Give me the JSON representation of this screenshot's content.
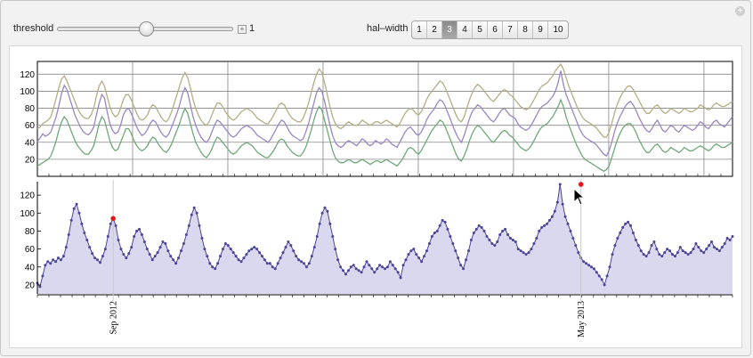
{
  "controls": {
    "threshold_label": "threshold",
    "threshold_value": "1",
    "threshold_level": 0.5,
    "halfwidth_label": "hal–width",
    "halfwidth_options": [
      "1",
      "2",
      "3",
      "4",
      "5",
      "6",
      "7",
      "8",
      "9",
      "10"
    ],
    "halfwidth_selected": "3"
  },
  "icons": {
    "window_button": "plus-icon",
    "cursor": "arrow-cursor-icon",
    "slider_increment": "plus-icon"
  },
  "colors": {
    "envelope_upper": "#b5ad85",
    "envelope_lower": "#6fa87a",
    "smoothed": "#9a86c4",
    "raw": "#4a4596",
    "fill": "#d9d8ee",
    "peak_marker": "#e01818"
  },
  "chart_data": [
    {
      "type": "line",
      "ylim": [
        0,
        135
      ],
      "yticks": [
        20,
        40,
        60,
        80,
        100,
        120
      ],
      "grid": true,
      "series": [
        {
          "values": [
            41,
            45,
            50,
            47,
            49,
            52,
            61,
            70,
            83,
            97,
            107,
            102,
            92,
            82,
            72,
            65,
            58,
            53,
            50,
            49,
            52,
            58,
            72,
            86,
            96,
            92,
            76,
            62,
            54,
            50,
            52,
            60,
            72,
            78,
            80,
            74,
            66,
            58,
            52,
            48,
            50,
            55,
            62,
            66,
            64,
            58,
            52,
            48,
            46,
            50,
            58,
            66,
            74,
            84,
            96,
            104,
            98,
            84,
            70,
            60,
            52,
            46,
            42,
            40,
            44,
            52,
            60,
            66,
            64,
            60,
            56,
            52,
            48,
            46,
            48,
            52,
            56,
            58,
            60,
            58,
            56,
            52,
            48,
            46,
            44,
            42,
            40,
            44,
            50,
            56,
            62,
            66,
            64,
            58,
            52,
            48,
            46,
            44,
            42,
            44,
            52,
            62,
            74,
            86,
            98,
            104,
            100,
            88,
            74,
            60,
            48,
            40,
            36,
            34,
            36,
            40,
            42,
            40,
            38,
            36,
            40,
            44,
            42,
            38,
            36,
            38,
            42,
            40,
            38,
            40,
            44,
            42,
            38,
            36,
            34,
            40,
            46,
            52,
            56,
            58,
            54,
            50,
            48,
            52,
            58,
            66,
            72,
            76,
            80,
            86,
            90,
            88,
            82,
            74,
            66,
            58,
            50,
            44,
            40,
            48,
            58,
            68,
            76,
            80,
            84,
            82,
            78,
            74,
            70,
            66,
            64,
            68,
            74,
            78,
            80,
            76,
            72,
            70,
            68,
            62,
            58,
            56,
            54,
            56,
            60,
            66,
            72,
            78,
            82,
            84,
            86,
            90,
            94,
            100,
            110,
            124,
            108,
            96,
            88,
            80,
            72,
            64,
            56,
            50,
            46,
            44,
            42,
            40,
            38,
            34,
            30,
            26,
            24,
            30,
            40,
            52,
            62,
            70,
            76,
            82,
            86,
            88,
            84,
            78,
            70,
            64,
            58,
            54,
            52,
            56,
            62,
            66,
            60,
            54,
            52,
            56,
            60,
            58,
            54,
            52,
            56,
            60,
            58,
            56,
            54,
            56,
            60,
            64,
            62,
            58,
            56,
            60,
            64,
            66,
            62,
            60,
            58,
            62,
            66,
            70
          ]
        },
        {
          "values": [
            56,
            58,
            62,
            64,
            66,
            70,
            80,
            92,
            104,
            114,
            118,
            112,
            104,
            96,
            88,
            80,
            74,
            70,
            68,
            68,
            72,
            80,
            94,
            106,
            112,
            106,
            94,
            82,
            74,
            70,
            72,
            80,
            90,
            96,
            96,
            90,
            82,
            74,
            68,
            66,
            68,
            72,
            80,
            84,
            82,
            76,
            70,
            66,
            64,
            68,
            76,
            86,
            96,
            106,
            116,
            122,
            116,
            104,
            90,
            80,
            72,
            66,
            62,
            60,
            64,
            72,
            80,
            86,
            86,
            82,
            76,
            72,
            68,
            66,
            68,
            72,
            76,
            78,
            80,
            78,
            76,
            72,
            68,
            66,
            64,
            62,
            62,
            66,
            72,
            78,
            84,
            86,
            84,
            78,
            72,
            68,
            66,
            64,
            64,
            68,
            76,
            86,
            98,
            110,
            120,
            126,
            122,
            110,
            96,
            82,
            70,
            62,
            58,
            56,
            58,
            62,
            64,
            62,
            60,
            60,
            62,
            66,
            64,
            62,
            60,
            62,
            64,
            64,
            62,
            64,
            66,
            64,
            62,
            60,
            58,
            62,
            68,
            74,
            78,
            80,
            78,
            74,
            72,
            76,
            82,
            90,
            96,
            100,
            104,
            108,
            112,
            110,
            104,
            96,
            88,
            80,
            72,
            66,
            64,
            70,
            80,
            90,
            98,
            104,
            108,
            106,
            102,
            98,
            94,
            90,
            88,
            92,
            96,
            100,
            102,
            100,
            96,
            94,
            90,
            86,
            82,
            80,
            78,
            80,
            84,
            90,
            96,
            102,
            106,
            108,
            110,
            114,
            118,
            124,
            128,
            132,
            126,
            116,
            106,
            98,
            90,
            82,
            76,
            70,
            66,
            64,
            62,
            60,
            58,
            54,
            50,
            46,
            46,
            52,
            62,
            74,
            84,
            92,
            98,
            102,
            106,
            106,
            102,
            96,
            90,
            84,
            78,
            74,
            74,
            78,
            82,
            84,
            80,
            76,
            74,
            76,
            80,
            78,
            76,
            74,
            76,
            80,
            78,
            76,
            76,
            78,
            80,
            84,
            82,
            80,
            78,
            80,
            84,
            86,
            84,
            82,
            82,
            84,
            86,
            88
          ]
        },
        {
          "values": [
            12,
            14,
            16,
            18,
            20,
            24,
            32,
            42,
            54,
            64,
            70,
            66,
            58,
            50,
            42,
            36,
            32,
            28,
            26,
            26,
            30,
            36,
            48,
            62,
            70,
            66,
            54,
            42,
            34,
            30,
            32,
            40,
            48,
            56,
            56,
            50,
            42,
            36,
            32,
            30,
            32,
            36,
            42,
            46,
            44,
            38,
            34,
            30,
            28,
            32,
            38,
            46,
            54,
            62,
            72,
            80,
            74,
            62,
            50,
            40,
            34,
            28,
            24,
            22,
            26,
            32,
            40,
            46,
            44,
            40,
            36,
            32,
            28,
            26,
            28,
            32,
            36,
            38,
            40,
            38,
            36,
            32,
            28,
            26,
            24,
            22,
            22,
            26,
            30,
            36,
            42,
            44,
            42,
            36,
            32,
            28,
            26,
            24,
            24,
            28,
            34,
            44,
            54,
            66,
            76,
            82,
            78,
            66,
            54,
            42,
            30,
            22,
            18,
            16,
            16,
            18,
            20,
            18,
            16,
            16,
            18,
            20,
            18,
            16,
            14,
            16,
            18,
            18,
            16,
            18,
            20,
            18,
            16,
            14,
            12,
            16,
            20,
            26,
            32,
            34,
            32,
            28,
            26,
            30,
            36,
            42,
            48,
            54,
            58,
            62,
            66,
            64,
            58,
            50,
            42,
            34,
            26,
            20,
            18,
            24,
            32,
            42,
            50,
            56,
            60,
            58,
            54,
            50,
            46,
            42,
            40,
            44,
            48,
            52,
            54,
            52,
            48,
            46,
            42,
            38,
            34,
            32,
            30,
            32,
            36,
            42,
            48,
            54,
            58,
            60,
            62,
            66,
            70,
            76,
            82,
            90,
            82,
            70,
            60,
            52,
            44,
            36,
            30,
            24,
            20,
            18,
            16,
            14,
            12,
            10,
            8,
            6,
            8,
            12,
            22,
            32,
            42,
            50,
            56,
            60,
            62,
            62,
            58,
            52,
            44,
            38,
            32,
            28,
            28,
            32,
            36,
            38,
            34,
            30,
            28,
            30,
            34,
            32,
            30,
            28,
            30,
            34,
            32,
            30,
            30,
            32,
            34,
            36,
            34,
            32,
            30,
            32,
            36,
            38,
            36,
            34,
            34,
            36,
            38,
            40
          ]
        }
      ]
    },
    {
      "type": "area",
      "ylim": [
        10,
        135
      ],
      "yticks": [
        20,
        40,
        60,
        80,
        100,
        120
      ],
      "xticks": [
        "Sep 2012",
        "May 2013"
      ],
      "peaks": [
        {
          "x": "Sep 2012",
          "y": 94
        },
        {
          "x": "May 2013",
          "y": 132
        }
      ],
      "values": [
        22,
        18,
        30,
        42,
        46,
        44,
        48,
        46,
        50,
        48,
        52,
        62,
        76,
        92,
        105,
        110,
        100,
        88,
        78,
        70,
        62,
        55,
        50,
        48,
        45,
        52,
        60,
        74,
        88,
        94,
        86,
        70,
        60,
        54,
        50,
        55,
        62,
        74,
        80,
        82,
        76,
        68,
        60,
        54,
        48,
        52,
        56,
        62,
        68,
        66,
        58,
        52,
        48,
        44,
        50,
        58,
        66,
        76,
        86,
        98,
        106,
        100,
        86,
        72,
        60,
        52,
        44,
        40,
        38,
        44,
        52,
        60,
        66,
        64,
        60,
        56,
        52,
        48,
        46,
        50,
        54,
        58,
        60,
        62,
        60,
        56,
        52,
        48,
        44,
        44,
        40,
        38,
        44,
        50,
        56,
        62,
        68,
        64,
        58,
        52,
        48,
        46,
        44,
        40,
        44,
        52,
        62,
        74,
        88,
        100,
        106,
        102,
        88,
        74,
        60,
        48,
        40,
        36,
        32,
        36,
        40,
        42,
        38,
        36,
        34,
        40,
        46,
        42,
        38,
        34,
        38,
        42,
        40,
        38,
        40,
        46,
        42,
        38,
        34,
        28,
        42,
        48,
        54,
        58,
        60,
        54,
        50,
        46,
        52,
        58,
        66,
        74,
        78,
        80,
        86,
        92,
        90,
        82,
        74,
        66,
        58,
        50,
        42,
        38,
        48,
        58,
        70,
        78,
        82,
        86,
        84,
        80,
        74,
        70,
        66,
        64,
        68,
        76,
        80,
        82,
        76,
        72,
        70,
        68,
        60,
        58,
        56,
        54,
        56,
        60,
        66,
        72,
        80,
        84,
        86,
        88,
        92,
        96,
        102,
        112,
        132,
        110,
        96,
        88,
        80,
        72,
        64,
        56,
        50,
        46,
        44,
        42,
        40,
        38,
        34,
        30,
        26,
        20,
        30,
        40,
        54,
        64,
        72,
        78,
        84,
        88,
        90,
        86,
        78,
        70,
        64,
        58,
        54,
        52,
        56,
        64,
        68,
        60,
        54,
        52,
        56,
        60,
        58,
        54,
        52,
        56,
        62,
        58,
        56,
        54,
        56,
        60,
        66,
        62,
        58,
        56,
        60,
        64,
        68,
        62,
        60,
        58,
        62,
        66,
        72,
        70,
        74
      ]
    }
  ]
}
